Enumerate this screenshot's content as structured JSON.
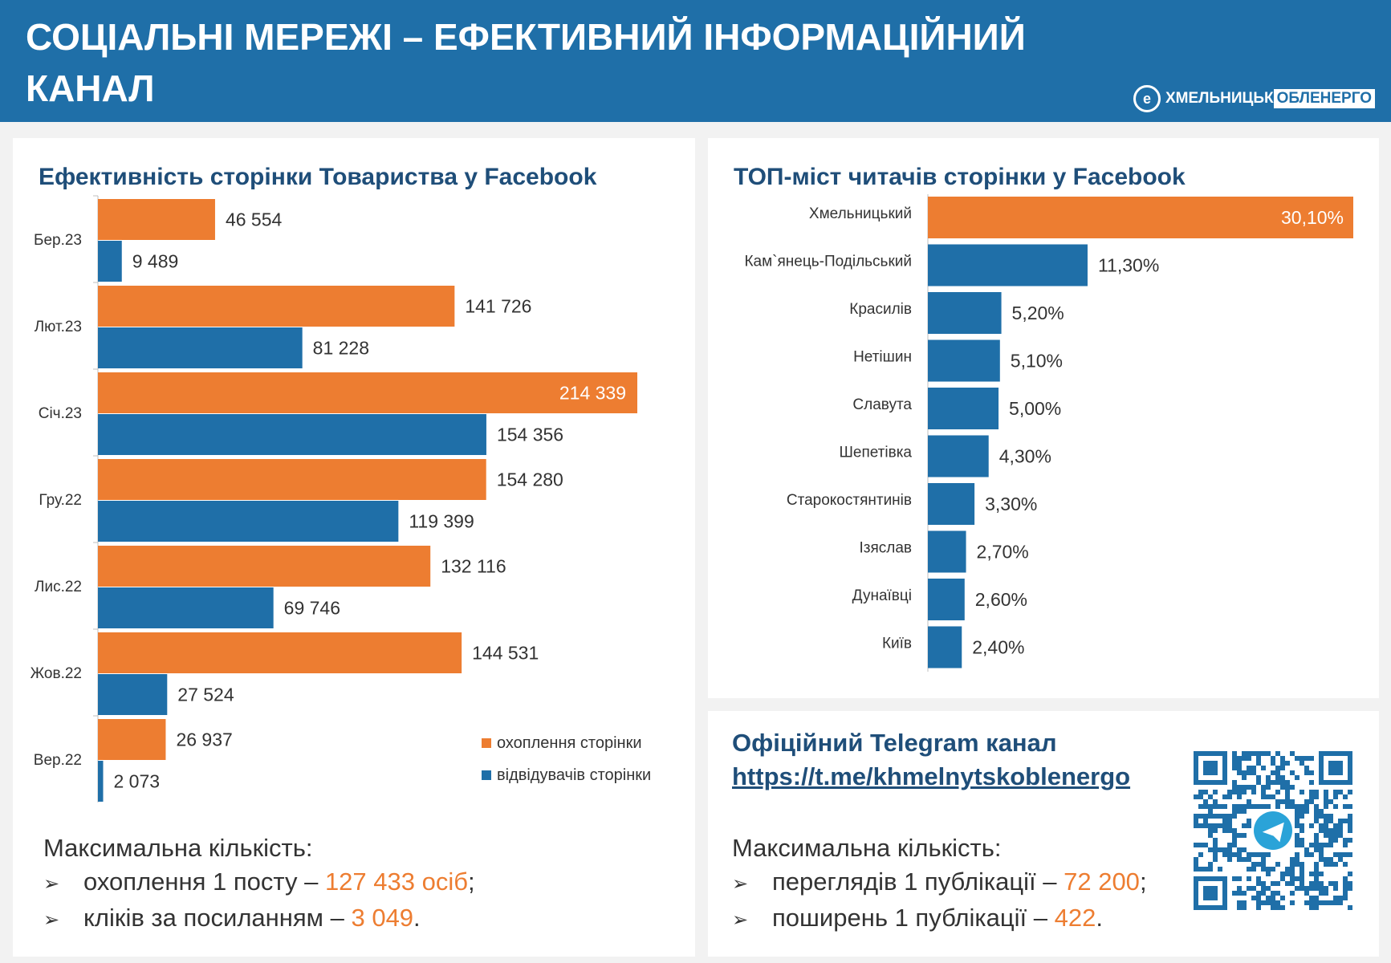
{
  "header": {
    "title": "СОЦІАЛЬНІ МЕРЕЖІ – ЕФЕКТИВНИЙ ІНФОРМАЦІЙНИЙ КАНАЛ",
    "logo_part1": "ХМЕЛЬНИЦЬК",
    "logo_part2": "ОБЛЕНЕРГО"
  },
  "colors": {
    "accent_blue": "#1f6fa8",
    "accent_orange": "#ed7d31",
    "title_navy": "#1f4e79"
  },
  "left_panel": {
    "title": "Ефективність сторінки Товариства у Facebook",
    "summary_heading": "Максимальна кількість:",
    "bullets": [
      {
        "text": "охоплення 1 посту – ",
        "value": "127 433 осіб",
        "suffix": ";"
      },
      {
        "text": "кліків за посиланням – ",
        "value": "3 049",
        "suffix": "."
      }
    ]
  },
  "right_panel": {
    "title": "ТОП-міст читачів сторінки у Facebook"
  },
  "telegram_panel": {
    "title": "Офіційний Telegram канал",
    "link": "https://t.me/khmelnytskoblenergo",
    "summary_heading": "Максимальна кількість:",
    "bullets": [
      {
        "text": "переглядів 1 публікації – ",
        "value": "72 200",
        "suffix": ";"
      },
      {
        "text": "поширень 1 публікації – ",
        "value": "422",
        "suffix": "."
      }
    ],
    "qr_icon": "telegram-qr-code"
  },
  "chart_data": [
    {
      "type": "bar",
      "orientation": "horizontal",
      "categories": [
        "Бер.23",
        "Лют.23",
        "Січ.23",
        "Гру.22",
        "Лис.22",
        "Жов.22",
        "Вер.22"
      ],
      "series": [
        {
          "name": "охоплення сторінки",
          "color": "#ed7d31",
          "values": [
            46554,
            141726,
            214339,
            154280,
            132116,
            144531,
            26937
          ]
        },
        {
          "name": "відвідувачів сторінки",
          "color": "#1f6fa8",
          "values": [
            9489,
            81228,
            154356,
            119399,
            69746,
            27524,
            2073
          ]
        }
      ],
      "value_labels": {
        "охоплення сторінки": [
          "46 554",
          "141 726",
          "214 339",
          "154 280",
          "132 116",
          "144 531",
          "26 937"
        ],
        "відвідувачів сторінки": [
          "9 489",
          "81 228",
          "154 356",
          "119 399",
          "69 746",
          "27 524",
          "2 073"
        ]
      },
      "xlim": [
        0,
        214339
      ],
      "legend": "bottom-right",
      "grid": false
    },
    {
      "type": "bar",
      "orientation": "horizontal",
      "categories": [
        "Хмельницький",
        "Кам`янець-Подільський",
        "Красилів",
        "Нетішин",
        "Славута",
        "Шепетівка",
        "Старокостянтинів",
        "Ізяслав",
        "Дунаївці",
        "Київ"
      ],
      "values": [
        30.1,
        11.3,
        5.2,
        5.1,
        5.0,
        4.3,
        3.3,
        2.7,
        2.6,
        2.4
      ],
      "value_labels": [
        "30,10%",
        "11,30%",
        "5,20%",
        "5,10%",
        "5,00%",
        "4,30%",
        "3,30%",
        "2,70%",
        "2,60%",
        "2,40%"
      ],
      "highlight_index": 0,
      "xlim": [
        0,
        30.1
      ],
      "grid": false
    }
  ]
}
